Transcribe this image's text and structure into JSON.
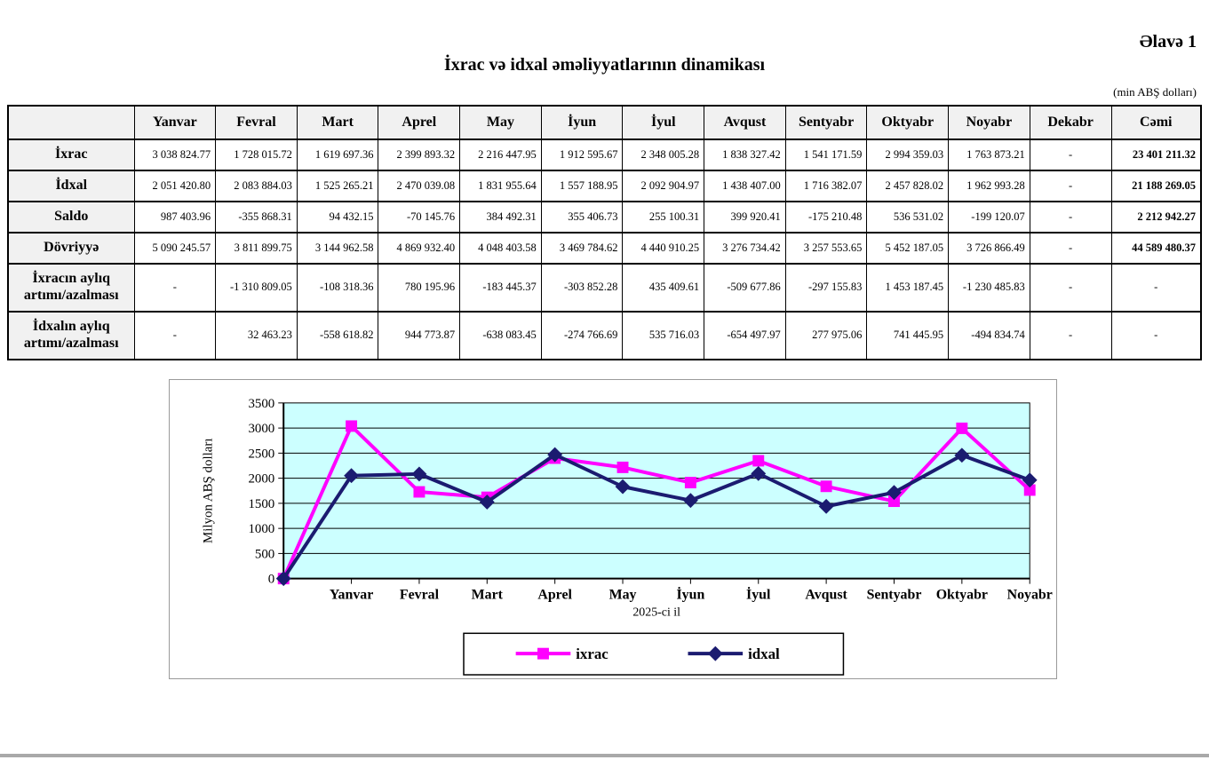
{
  "page": {
    "annex_label": "Əlavə 1",
    "title": "İxrac və idxal əməliyyatlarının dinamikası",
    "unit_note": "(min ABŞ dolları)"
  },
  "table": {
    "corner": "",
    "columns": [
      "Yanvar",
      "Fevral",
      "Mart",
      "Aprel",
      "May",
      "İyun",
      "İyul",
      "Avqust",
      "Sentyabr",
      "Oktyabr",
      "Noyabr",
      "Dekabr",
      "Cəmi"
    ],
    "rows": [
      {
        "label": "İxrac",
        "values": [
          "3 038 824.77",
          "1 728 015.72",
          "1 619 697.36",
          "2 399 893.32",
          "2 216 447.95",
          "1 912 595.67",
          "2 348 005.28",
          "1 838 327.42",
          "1 541 171.59",
          "2 994 359.03",
          "1 763 873.21",
          "-",
          "23 401 211.32"
        ]
      },
      {
        "label": "İdxal",
        "values": [
          "2 051 420.80",
          "2 083 884.03",
          "1 525 265.21",
          "2 470 039.08",
          "1 831 955.64",
          "1 557 188.95",
          "2 092 904.97",
          "1 438 407.00",
          "1 716 382.07",
          "2 457 828.02",
          "1 962 993.28",
          "-",
          "21 188 269.05"
        ]
      },
      {
        "label": "Saldo",
        "values": [
          "987 403.96",
          "-355 868.31",
          "94 432.15",
          "-70 145.76",
          "384 492.31",
          "355 406.73",
          "255 100.31",
          "399 920.41",
          "-175 210.48",
          "536 531.02",
          "-199 120.07",
          "-",
          "2 212 942.27"
        ]
      },
      {
        "label": "Dövriyyə",
        "values": [
          "5 090 245.57",
          "3 811 899.75",
          "3 144 962.58",
          "4 869 932.40",
          "4 048 403.58",
          "3 469 784.62",
          "4 440 910.25",
          "3 276 734.42",
          "3 257 553.65",
          "5 452 187.05",
          "3 726 866.49",
          "-",
          "44 589 480.37"
        ]
      },
      {
        "label": "İxracın aylıq artımı/azalması",
        "values": [
          "-",
          "-1 310 809.05",
          "-108 318.36",
          "780 195.96",
          "-183 445.37",
          "-303 852.28",
          "435 409.61",
          "-509 677.86",
          "-297 155.83",
          "1 453 187.45",
          "-1 230 485.83",
          "-",
          "-"
        ]
      },
      {
        "label": "İdxalın aylıq artımı/azalması",
        "values": [
          "-",
          "32 463.23",
          "-558 618.82",
          "944 773.87",
          "-638 083.45",
          "-274 766.69",
          "535 716.03",
          "-654 497.97",
          "277 975.06",
          "741 445.95",
          "-494 834.74",
          "-",
          "-"
        ]
      }
    ]
  },
  "chart_data": {
    "type": "line",
    "categories": [
      "",
      "Yanvar",
      "Fevral",
      "Mart",
      "Aprel",
      "May",
      "İyun",
      "İyul",
      "Avqust",
      "Sentyabr",
      "Oktyabr",
      "Noyabr"
    ],
    "series": [
      {
        "name": "ixrac",
        "color": "#FF00FF",
        "marker": "square",
        "values": [
          0,
          3038.8,
          1728.0,
          1619.7,
          2399.9,
          2216.4,
          1912.6,
          2348.0,
          1838.3,
          1541.2,
          2994.4,
          1763.9
        ]
      },
      {
        "name": "idxal",
        "color": "#1b1b70",
        "marker": "diamond",
        "values": [
          0,
          2051.4,
          2083.9,
          1525.3,
          2470.0,
          1832.0,
          1557.2,
          2092.9,
          1438.4,
          1716.4,
          2457.8,
          1963.0
        ]
      }
    ],
    "title": "",
    "xlabel": "2025-ci il",
    "ylabel": "Milyon ABŞ dolları",
    "ylim": [
      0,
      3500
    ],
    "ytick_step": 500,
    "plot_bg": "#CCFFFF",
    "grid": "horizontal",
    "legend_position": "bottom"
  }
}
